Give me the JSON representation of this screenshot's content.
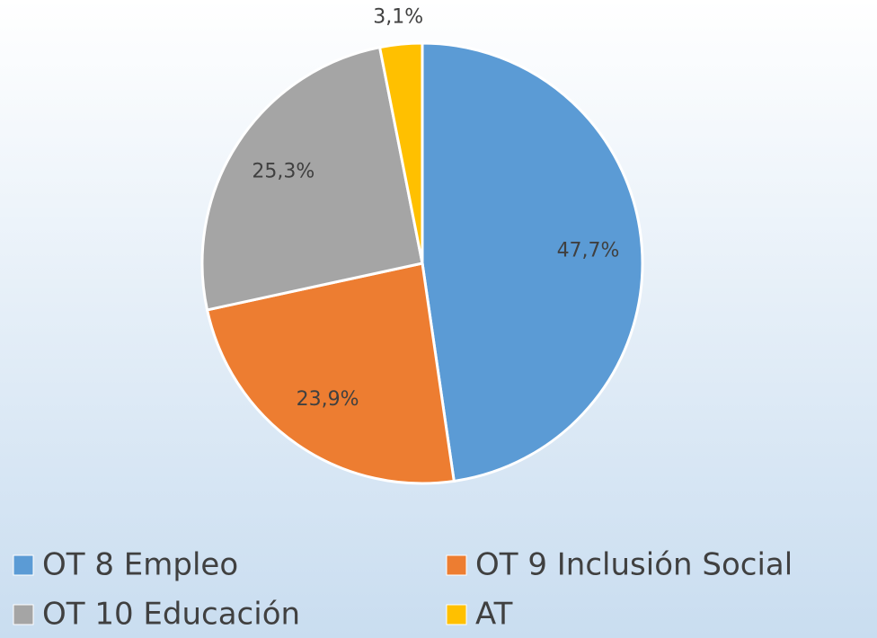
{
  "chart_data": {
    "type": "pie",
    "categories": [
      "OT 8 Empleo",
      "OT 9 Inclusión Social",
      "OT 10 Educación",
      "AT"
    ],
    "values": [
      47.7,
      23.9,
      25.3,
      3.1
    ],
    "value_labels": [
      "47,7%",
      "23,9%",
      "25,3%",
      "3,1%"
    ],
    "colors": [
      "#5b9bd5",
      "#ed7d31",
      "#a5a5a5",
      "#ffc000"
    ],
    "legend": "bottom"
  }
}
